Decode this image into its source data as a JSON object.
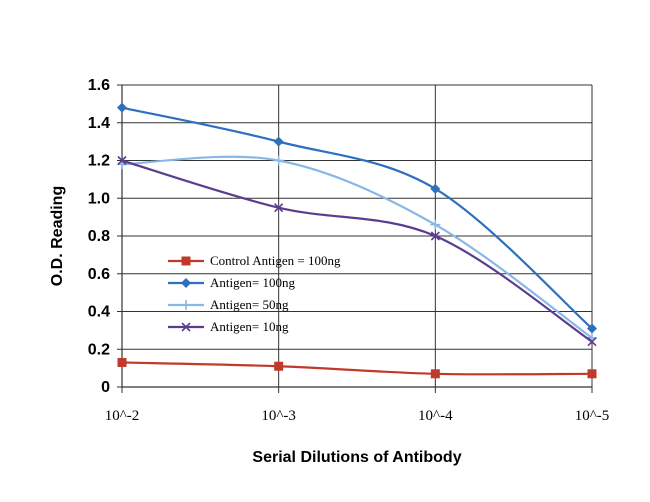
{
  "chart_data": {
    "type": "line",
    "title": "",
    "xlabel": "Serial Dilutions of Antibody",
    "ylabel": "O.D. Reading",
    "categories": [
      "10^-2",
      "10^-3",
      "10^-4",
      "10^-5"
    ],
    "ylim": [
      0,
      1.6
    ],
    "yticks": [
      "0",
      "0.2",
      "0.4",
      "0.6",
      "0.8",
      "1.0",
      "1.2",
      "1.4",
      "1.6"
    ],
    "grid": true,
    "legend_position": "lower-left",
    "series": [
      {
        "name": "Control Antigen = 100ng",
        "values": [
          0.13,
          0.11,
          0.07,
          0.07
        ],
        "color": "#c0392b",
        "marker": "square"
      },
      {
        "name": "Antigen= 100ng",
        "values": [
          1.48,
          1.3,
          1.05,
          0.31
        ],
        "color": "#2f6fbf",
        "marker": "diamond"
      },
      {
        "name": "Antigen= 50ng",
        "values": [
          1.18,
          1.2,
          0.86,
          0.26
        ],
        "color": "#8ab8e6",
        "marker": "plus"
      },
      {
        "name": "Antigen= 10ng",
        "values": [
          1.2,
          0.95,
          0.8,
          0.24
        ],
        "color": "#5b3d8f",
        "marker": "x"
      }
    ]
  }
}
